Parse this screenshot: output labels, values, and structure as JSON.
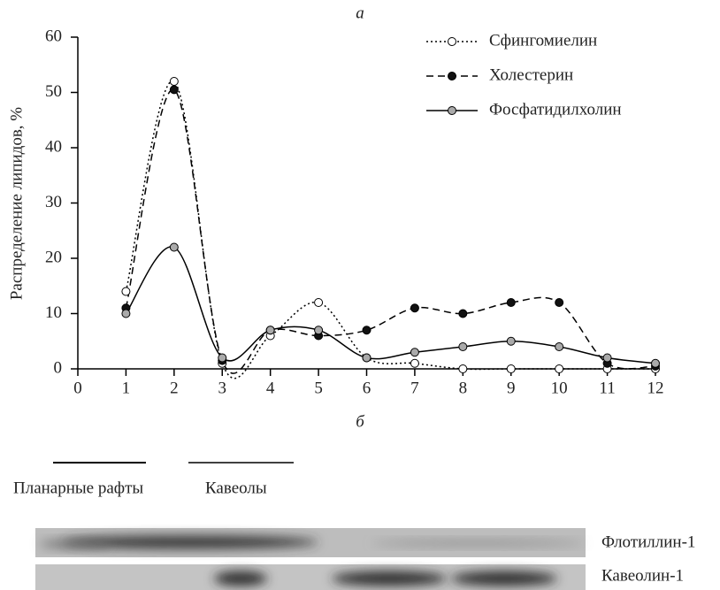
{
  "chart_data": {
    "type": "line",
    "title": "а",
    "ylabel": "Распределение липидов, %",
    "x": [
      1,
      2,
      3,
      4,
      5,
      6,
      7,
      8,
      9,
      10,
      11,
      12
    ],
    "series": [
      {
        "name": "Сфингомиелин",
        "color": "#000000",
        "marker_color": "#ffffff",
        "linestyle": "dotted",
        "values": [
          14,
          52,
          1,
          6,
          12,
          2,
          1,
          0,
          0,
          0,
          0,
          0
        ]
      },
      {
        "name": "Холестерин",
        "color": "#000000",
        "marker_color": "#111111",
        "linestyle": "dashed",
        "values": [
          11,
          50.5,
          1.5,
          7,
          6,
          7,
          11,
          10,
          12,
          12,
          1,
          0.5
        ]
      },
      {
        "name": "Фосфатидилхолин",
        "color": "#000000",
        "marker_color": "#aaaaaa",
        "linestyle": "solid",
        "values": [
          10,
          22,
          2,
          7,
          7,
          2,
          3,
          4,
          5,
          4,
          2,
          1
        ]
      }
    ],
    "xlim": [
      0,
      12
    ],
    "xticks": [
      0,
      1,
      2,
      3,
      4,
      5,
      6,
      7,
      8,
      9,
      10,
      11,
      12
    ],
    "ylim": [
      0,
      60
    ],
    "yticks": [
      0,
      10,
      20,
      30,
      40,
      50,
      60
    ],
    "grid": false,
    "legend": "upper right"
  },
  "blot": {
    "panel_label": "б",
    "regions": [
      "Планарные рафты",
      "Кавеолы"
    ],
    "bands": [
      "Флотиллин-1",
      "Кавеолин-1"
    ]
  }
}
